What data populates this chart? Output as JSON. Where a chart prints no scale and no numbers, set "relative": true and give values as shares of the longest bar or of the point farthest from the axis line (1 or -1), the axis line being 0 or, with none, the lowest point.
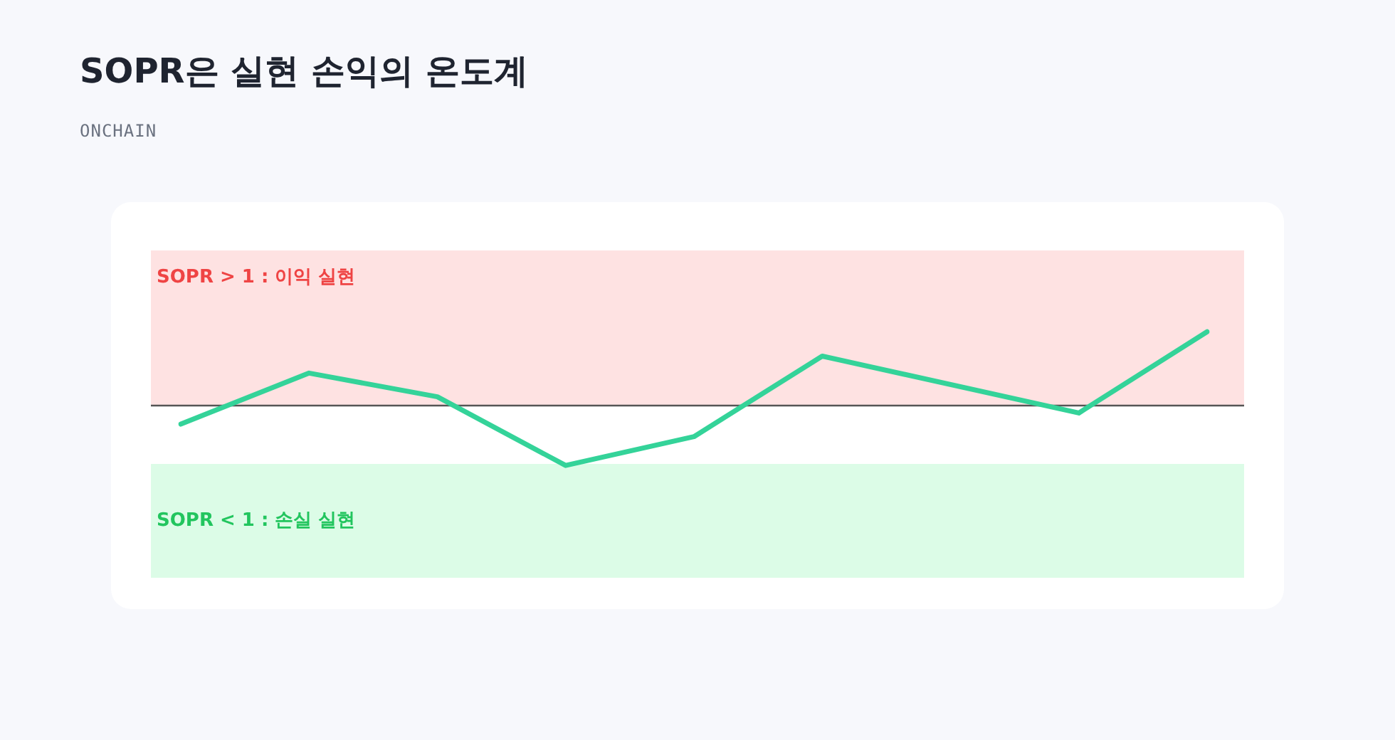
{
  "chart_data": {
    "type": "line",
    "title": "SOPR은 실현 손익의 온도계",
    "subtitle": "ONCHAIN",
    "relative": true,
    "categories": [
      null,
      null,
      null,
      null,
      null,
      null,
      null,
      null,
      null
    ],
    "series": [
      {
        "color": "#34d399",
        "values": [
          -0.25,
          0.44,
          0.12,
          -0.81,
          -0.42,
          0.67,
          null,
          -0.1,
          1
        ]
      }
    ],
    "bands": [
      {
        "axis": "y",
        "from": 0,
        "to": 2.1,
        "label": "SOPR > 1 : 이익 실현",
        "color": "#fee2e2"
      },
      {
        "axis": "y",
        "from": -0.79,
        "to": -2.33,
        "label": "SOPR < 1 : 손실 실현",
        "color": "#dcfce7"
      }
    ],
    "ref_lines": [
      {
        "axis": "y",
        "value": 0,
        "color": "#555555"
      }
    ],
    "legend": false,
    "marker": "none",
    "line_style": "solid"
  }
}
